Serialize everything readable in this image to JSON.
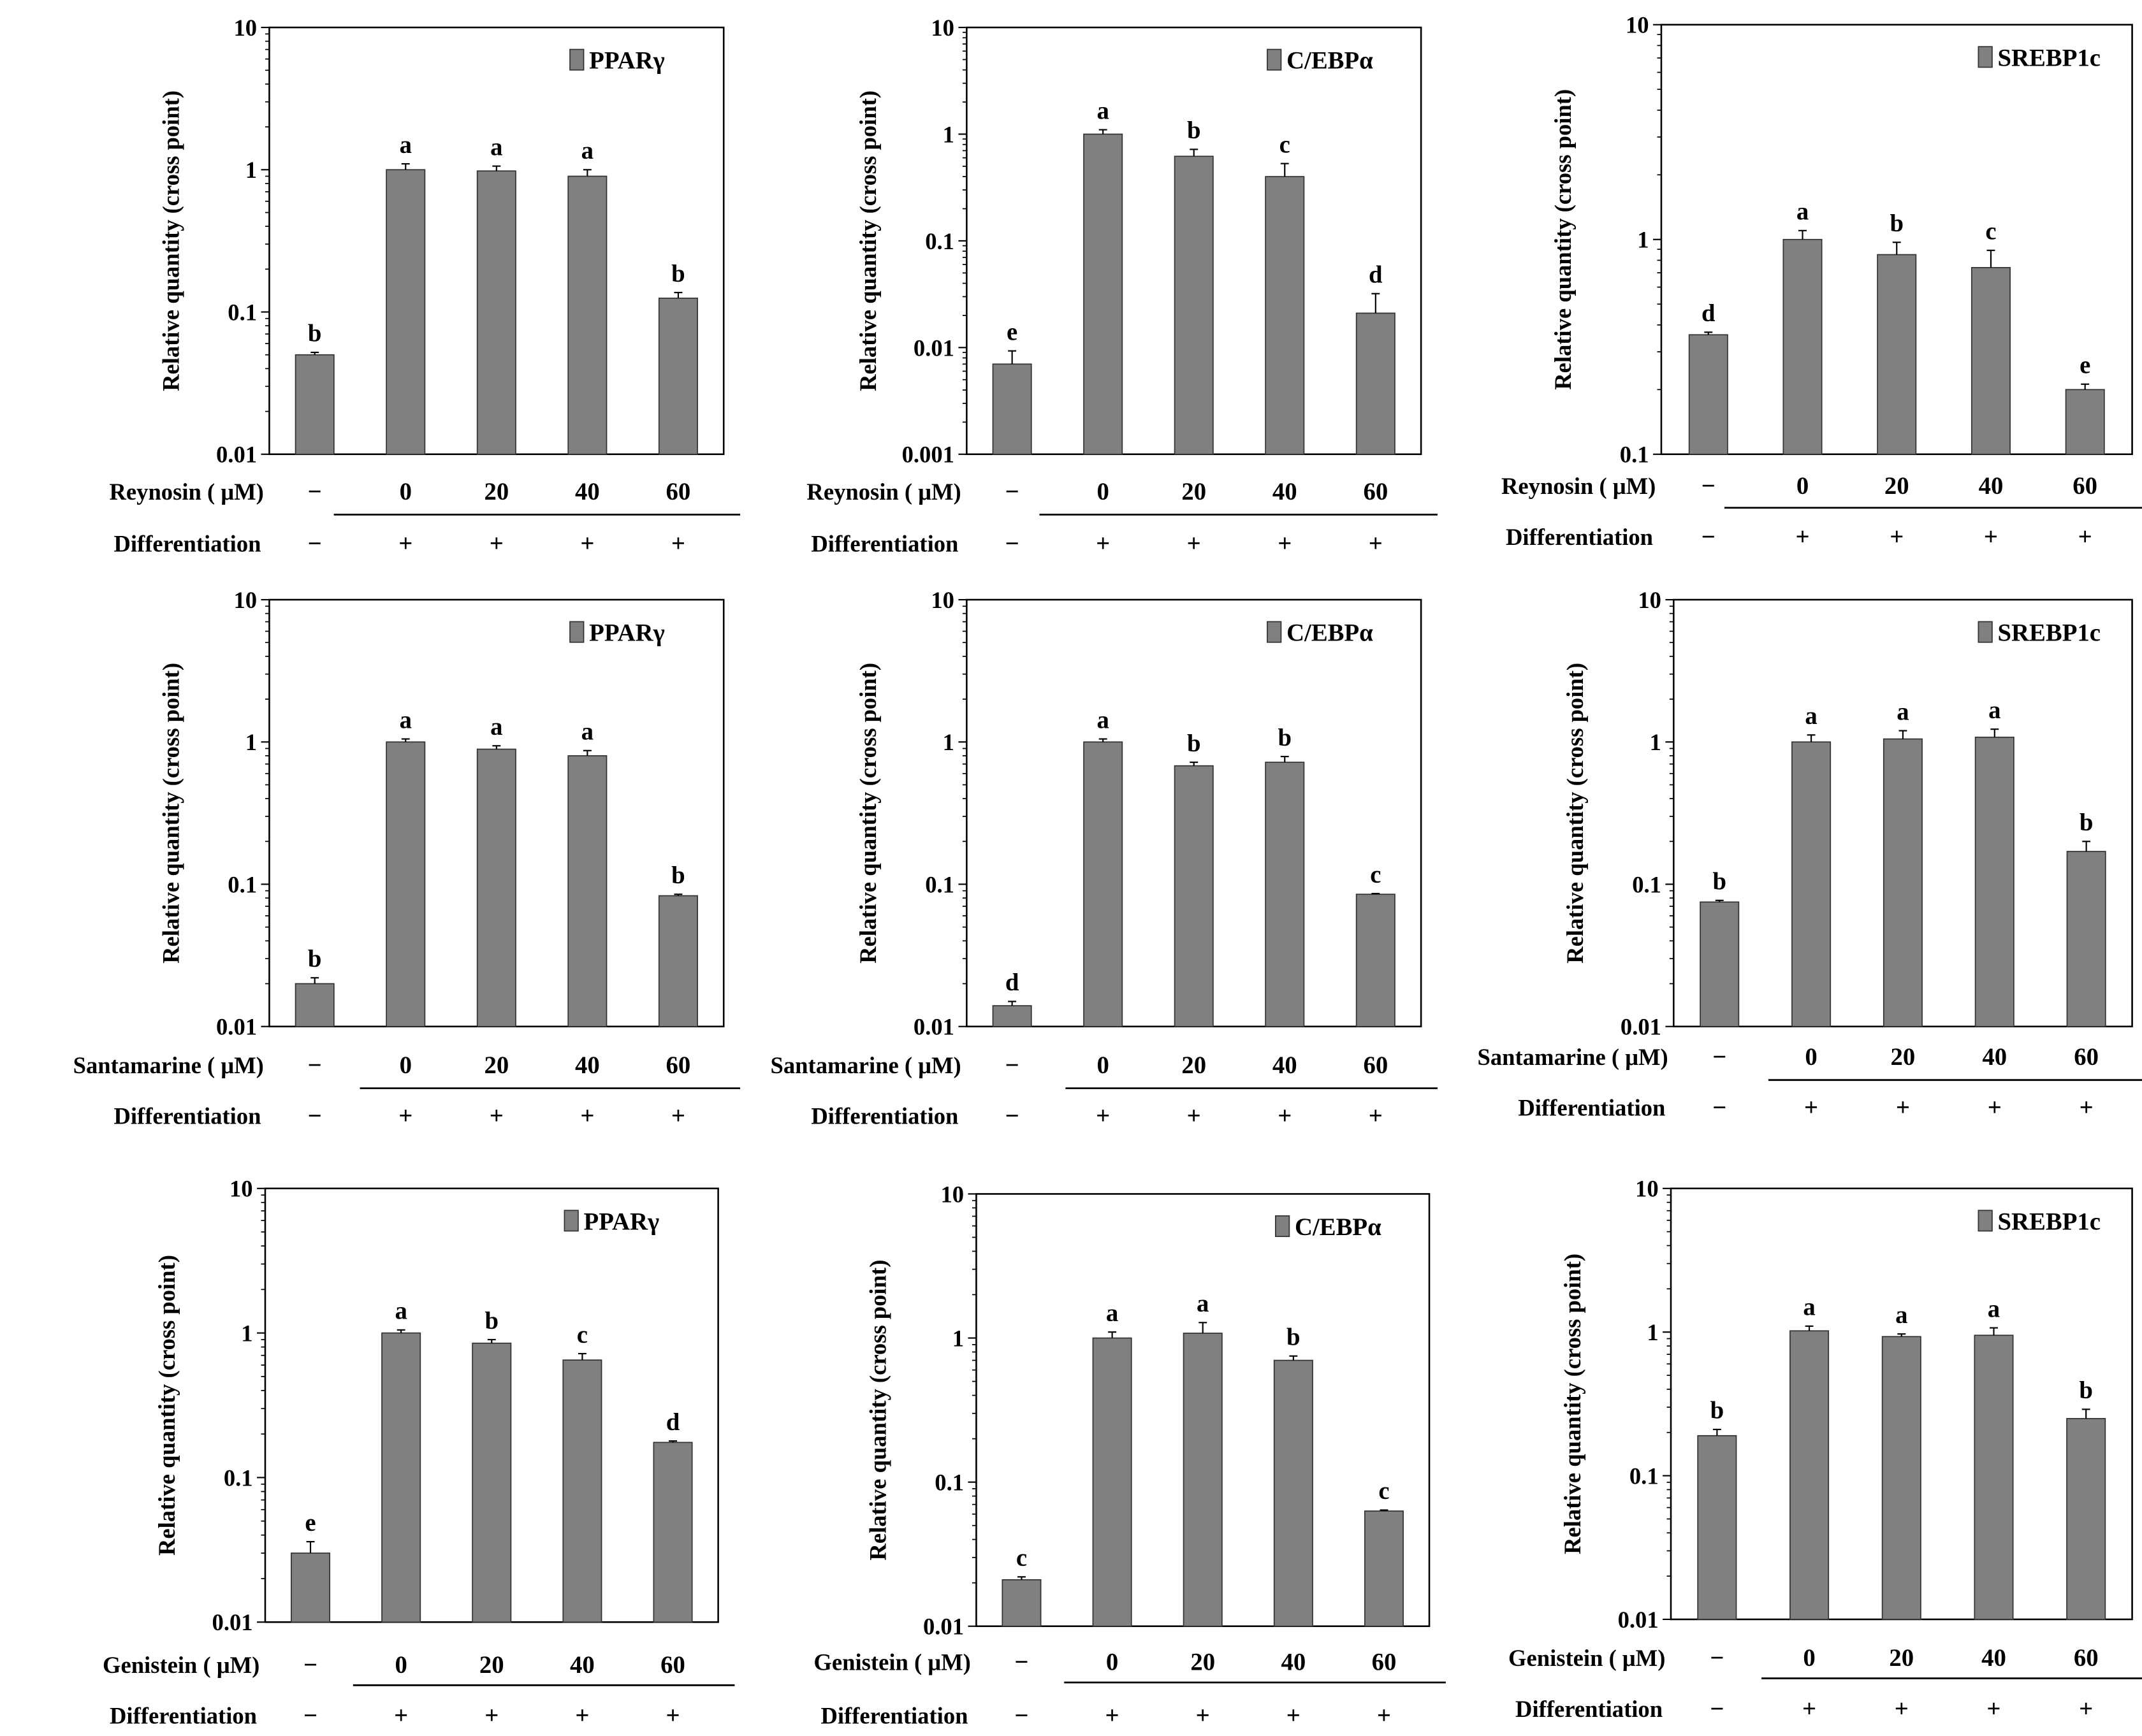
{
  "colors": {
    "bar": "#808080",
    "axis": "#000000"
  },
  "chart_data": [
    {
      "type": "bar",
      "title": "PPARγ",
      "treatment": "Reynosin ( μM)",
      "ylabel": "Relative quantity (cross point)",
      "yscale": "log",
      "ylim": [
        0.01,
        10
      ],
      "yticks": [
        "0.01",
        "0.1",
        "1",
        "10"
      ],
      "categories": [
        "−",
        "0",
        "20",
        "40",
        "60"
      ],
      "differentiation": [
        "−",
        "+",
        "+",
        "+",
        "+"
      ],
      "diff_label": "Differentiation",
      "values": [
        0.05,
        1.0,
        0.98,
        0.9,
        0.125
      ],
      "errors": [
        0.002,
        0.1,
        0.08,
        0.1,
        0.012
      ],
      "letters": [
        "b",
        "a",
        "a",
        "a",
        "b"
      ]
    },
    {
      "type": "bar",
      "title": "C/EBPα",
      "treatment": "Reynosin ( μM)",
      "ylabel": "Relative quantity (cross point)",
      "yscale": "log",
      "ylim": [
        0.001,
        10
      ],
      "yticks": [
        "0.001",
        "0.01",
        "0.1",
        "1",
        "10"
      ],
      "categories": [
        "−",
        "0",
        "20",
        "40",
        "60"
      ],
      "differentiation": [
        "−",
        "+",
        "+",
        "+",
        "+"
      ],
      "diff_label": "Differentiation",
      "values": [
        0.007,
        1.0,
        0.62,
        0.4,
        0.021
      ],
      "errors": [
        0.0023,
        0.1,
        0.1,
        0.13,
        0.011
      ],
      "letters": [
        "e",
        "a",
        "b",
        "c",
        "d"
      ]
    },
    {
      "type": "bar",
      "title": "SREBP1c",
      "treatment": "Reynosin ( μM)",
      "ylabel": "Relative quantity (cross point)",
      "yscale": "log",
      "ylim": [
        0.1,
        10
      ],
      "yticks": [
        "0.1",
        "1",
        "10"
      ],
      "categories": [
        "−",
        "0",
        "20",
        "40",
        "60"
      ],
      "differentiation": [
        "−",
        "+",
        "+",
        "+",
        "+"
      ],
      "diff_label": "Differentiation",
      "values": [
        0.36,
        1.0,
        0.85,
        0.74,
        0.2
      ],
      "errors": [
        0.01,
        0.1,
        0.12,
        0.15,
        0.012
      ],
      "letters": [
        "d",
        "a",
        "b",
        "c",
        "e"
      ]
    },
    {
      "type": "bar",
      "title": "PPARγ",
      "treatment": "Santamarine ( μM)",
      "ylabel": "Relative quantity (cross point)",
      "yscale": "log",
      "ylim": [
        0.01,
        10
      ],
      "yticks": [
        "0.01",
        "0.1",
        "1",
        "10"
      ],
      "categories": [
        "−",
        "0",
        "20",
        "40",
        "60"
      ],
      "differentiation": [
        "−",
        "+",
        "+",
        "+",
        "+"
      ],
      "diff_label": "Differentiation",
      "values": [
        0.02,
        1.0,
        0.89,
        0.8,
        0.083
      ],
      "errors": [
        0.002,
        0.05,
        0.05,
        0.07,
        0.002
      ],
      "letters": [
        "b",
        "a",
        "a",
        "a",
        "b"
      ]
    },
    {
      "type": "bar",
      "title": "C/EBPα",
      "treatment": "Santamarine ( μM)",
      "ylabel": "Relative quantity (cross point)",
      "yscale": "log",
      "ylim": [
        0.01,
        10
      ],
      "yticks": [
        "0.01",
        "0.1",
        "1",
        "10"
      ],
      "categories": [
        "−",
        "0",
        "20",
        "40",
        "60"
      ],
      "differentiation": [
        "−",
        "+",
        "+",
        "+",
        "+"
      ],
      "diff_label": "Differentiation",
      "values": [
        0.014,
        1.0,
        0.68,
        0.72,
        0.085
      ],
      "errors": [
        0.001,
        0.05,
        0.04,
        0.07,
        0.001
      ],
      "letters": [
        "d",
        "a",
        "b",
        "b",
        "c"
      ]
    },
    {
      "type": "bar",
      "title": "SREBP1c",
      "treatment": "Santamarine ( μM)",
      "ylabel": "Relative quantity (cross point)",
      "yscale": "log",
      "ylim": [
        0.01,
        10
      ],
      "yticks": [
        "0.01",
        "0.1",
        "1",
        "10"
      ],
      "categories": [
        "−",
        "0",
        "20",
        "40",
        "60"
      ],
      "differentiation": [
        "−",
        "+",
        "+",
        "+",
        "+"
      ],
      "diff_label": "Differentiation",
      "values": [
        0.075,
        1.0,
        1.05,
        1.08,
        0.17
      ],
      "errors": [
        0.002,
        0.12,
        0.15,
        0.15,
        0.03
      ],
      "letters": [
        "b",
        "a",
        "a",
        "a",
        "b"
      ]
    },
    {
      "type": "bar",
      "title": "PPARγ",
      "treatment": "Genistein ( μM)",
      "ylabel": "Relative quantity (cross point)",
      "yscale": "log",
      "ylim": [
        0.01,
        10
      ],
      "yticks": [
        "0.01",
        "0.1",
        "1",
        "10"
      ],
      "categories": [
        "−",
        "0",
        "20",
        "40",
        "60"
      ],
      "differentiation": [
        "−",
        "+",
        "+",
        "+",
        "+"
      ],
      "diff_label": "Differentiation",
      "values": [
        0.03,
        1.0,
        0.85,
        0.65,
        0.175
      ],
      "errors": [
        0.006,
        0.05,
        0.05,
        0.07,
        0.004
      ],
      "letters": [
        "e",
        "a",
        "b",
        "c",
        "d"
      ]
    },
    {
      "type": "bar",
      "title": "C/EBPα",
      "treatment": "Genistein ( μM)",
      "ylabel": "Relative quantity (cross point)",
      "yscale": "log",
      "ylim": [
        0.01,
        10
      ],
      "yticks": [
        "0.01",
        "0.1",
        "1",
        "10"
      ],
      "categories": [
        "−",
        "0",
        "20",
        "40",
        "60"
      ],
      "differentiation": [
        "−",
        "+",
        "+",
        "+",
        "+"
      ],
      "diff_label": "Differentiation",
      "values": [
        0.021,
        1.0,
        1.08,
        0.7,
        0.063
      ],
      "errors": [
        0.001,
        0.1,
        0.2,
        0.05,
        0.001
      ],
      "letters": [
        "c",
        "a",
        "a",
        "b",
        "c"
      ]
    },
    {
      "type": "bar",
      "title": "SREBP1c",
      "treatment": "Genistein ( μM)",
      "ylabel": "Relative quantity (cross point)",
      "yscale": "log",
      "ylim": [
        0.01,
        10
      ],
      "yticks": [
        "0.01",
        "0.1",
        "1",
        "10"
      ],
      "categories": [
        "−",
        "0",
        "20",
        "40",
        "60"
      ],
      "differentiation": [
        "−",
        "+",
        "+",
        "+",
        "+"
      ],
      "diff_label": "Differentiation",
      "values": [
        0.19,
        1.02,
        0.93,
        0.95,
        0.25
      ],
      "errors": [
        0.02,
        0.08,
        0.04,
        0.12,
        0.04
      ],
      "letters": [
        "b",
        "a",
        "a",
        "a",
        "b"
      ]
    }
  ]
}
